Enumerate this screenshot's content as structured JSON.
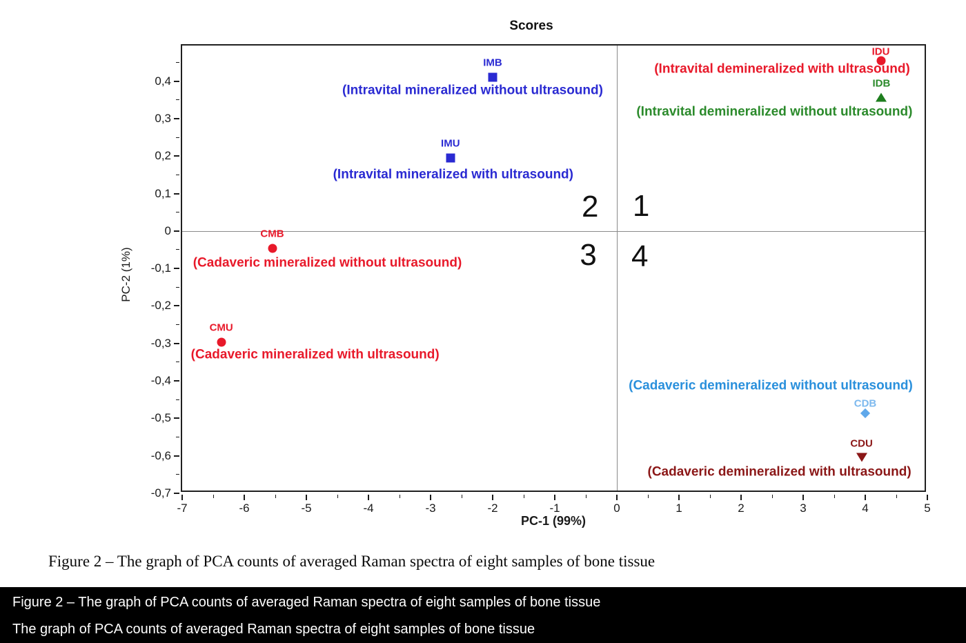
{
  "chart_data": {
    "type": "scatter",
    "title": "Scores",
    "xlabel": "PC-1 (99%)",
    "ylabel": "PC-2 (1%)",
    "xlim": [
      -7,
      5
    ],
    "ylim": [
      -0.7,
      0.495
    ],
    "x_major_ticks": [
      -7,
      -6,
      -5,
      -4,
      -3,
      -2,
      -1,
      0,
      1,
      2,
      3,
      4,
      5
    ],
    "x_tick_labels": [
      "-7",
      "-6",
      "-5",
      "-4",
      "-3",
      "-2",
      "-1",
      "0",
      "1",
      "2",
      "3",
      "4",
      "5"
    ],
    "x_minor_ticks": [
      -6.5,
      -5.5,
      -4.5,
      -3.5,
      -2.5,
      -1.5,
      -0.5,
      0.5,
      1.5,
      2.5,
      3.5,
      4.5
    ],
    "y_major_ticks": [
      0.4,
      0.3,
      0.2,
      0.1,
      0,
      -0.1,
      -0.2,
      -0.3,
      -0.4,
      -0.5,
      -0.6,
      -0.7
    ],
    "y_tick_labels": [
      "0,4",
      "0,3",
      "0,2",
      "0,1",
      "0",
      "-0,1",
      "-0,2",
      "-0,3",
      "-0,4",
      "-0,5",
      "-0,6",
      "-0,7"
    ],
    "y_minor_ticks": [
      0.45,
      0.35,
      0.25,
      0.15,
      0.05,
      -0.05,
      -0.15,
      -0.25,
      -0.35,
      -0.45,
      -0.55,
      -0.65
    ],
    "zero_lines": true,
    "grid": false,
    "quadrant_labels": [
      {
        "label": "1",
        "x": 0.39,
        "y": 0.066
      },
      {
        "label": "2",
        "x": -0.43,
        "y": 0.064
      },
      {
        "label": "3",
        "x": -0.46,
        "y": -0.064
      },
      {
        "label": "4",
        "x": 0.37,
        "y": -0.068
      }
    ],
    "points": [
      {
        "id": "IMB",
        "x": -2.0,
        "y": 0.41,
        "marker": "square",
        "color": "#2a2ad2",
        "desc": "(Intravital mineralized without ultrasound)",
        "desc_color": "#2a2ad2",
        "id_color": "#2a2ad2",
        "desc_dx": -29,
        "desc_dy": 19,
        "id_dy": -21
      },
      {
        "id": "IMU",
        "x": -2.68,
        "y": 0.195,
        "marker": "square",
        "color": "#2a2ad2",
        "desc": "(Intravital mineralized with ultrasound)",
        "desc_color": "#2a2ad2",
        "id_color": "#2a2ad2",
        "desc_dx": 4,
        "desc_dy": 24,
        "id_dy": -21
      },
      {
        "id": "IDU",
        "x": 4.25,
        "y": 0.455,
        "marker": "circle",
        "color": "#e8192a",
        "desc": "(Intravital demineralized with ultrasound)",
        "desc_color": "#e8192a",
        "id_color": "#e8192a",
        "desc_dx": -143,
        "desc_dy": 12,
        "id_dy": -13
      },
      {
        "id": "IDB",
        "x": 4.26,
        "y": 0.357,
        "marker": "tri-up",
        "color": "#1e7e1e",
        "desc": "(Intravital demineralized without ultrasound)",
        "desc_color": "#2b8a2b",
        "id_color": "#2b8a2b",
        "desc_dx": -155,
        "desc_dy": 21,
        "id_dy": -20
      },
      {
        "id": "CMB",
        "x": -5.55,
        "y": -0.046,
        "marker": "circle",
        "color": "#e8192a",
        "desc": "(Cadaveric mineralized without ultrasound)",
        "desc_color": "#e8192a",
        "id_color": "#e8192a",
        "desc_dx": 80,
        "desc_dy": 21,
        "id_dy": -21
      },
      {
        "id": "CMU",
        "x": -6.37,
        "y": -0.297,
        "marker": "circle",
        "color": "#e8192a",
        "desc": "(Cadaveric mineralized with ultrasound)",
        "desc_color": "#e8192a",
        "id_color": "#e8192a",
        "desc_dx": 136,
        "desc_dy": 18,
        "id_dy": -21
      },
      {
        "id": "CDB",
        "x": 4.0,
        "y": -0.486,
        "marker": "diamond",
        "color": "#5fa8ea",
        "desc": "(Cadaveric demineralized without ultrasound)",
        "desc_color": "#2a90dc",
        "id_color": "#7db9ee",
        "desc_dx": -137,
        "desc_dy": -40,
        "id_dy": -14
      },
      {
        "id": "CDU",
        "x": 3.94,
        "y": -0.604,
        "marker": "tri-down",
        "color": "#8b1717",
        "desc": "(Cadaveric demineralized with ultrasound)",
        "desc_color": "#8b1717",
        "id_color": "#8b1717",
        "desc_dx": -119,
        "desc_dy": 21,
        "id_dy": -20
      }
    ],
    "axis_color": "#1a1a1a",
    "zero_line_color": "#8a8a8a"
  },
  "caption": "Figure 2 – The graph of PCA counts of averaged Raman spectra of eight samples of bone tissue",
  "overlay_bar": {
    "line1": "Figure 2 – The graph of PCA counts of averaged Raman spectra of eight samples of bone tissue",
    "line2": "The graph of PCA counts of averaged Raman spectra of eight samples of bone tissue"
  }
}
